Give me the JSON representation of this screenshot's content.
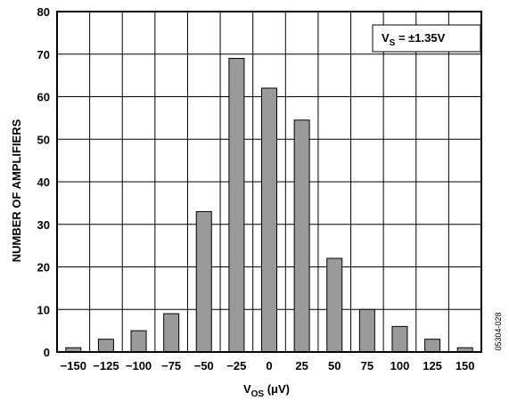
{
  "chart_data": {
    "type": "bar",
    "xlabel_main": "V",
    "xlabel_sub": "OS",
    "xlabel_unit": " (μV)",
    "ylabel": "NUMBER OF AMPLIFIERS",
    "categories": [
      "−150",
      "−125",
      "−100",
      "−75",
      "−50",
      "−25",
      "0",
      "25",
      "50",
      "75",
      "100",
      "125",
      "150"
    ],
    "values": [
      1,
      3,
      5,
      9,
      33,
      69,
      62,
      54.5,
      22,
      10,
      6,
      3,
      1
    ],
    "ylim": [
      0,
      80
    ],
    "yticks": [
      "0",
      "10",
      "20",
      "30",
      "40",
      "50",
      "60",
      "70",
      "80"
    ],
    "grid": true,
    "bar_color": "#9a9a9a",
    "legend": {
      "main": "V",
      "sub": "S",
      "rest": " = ±1.35V",
      "placement": "top-right"
    },
    "figure_code": "05304-028"
  }
}
